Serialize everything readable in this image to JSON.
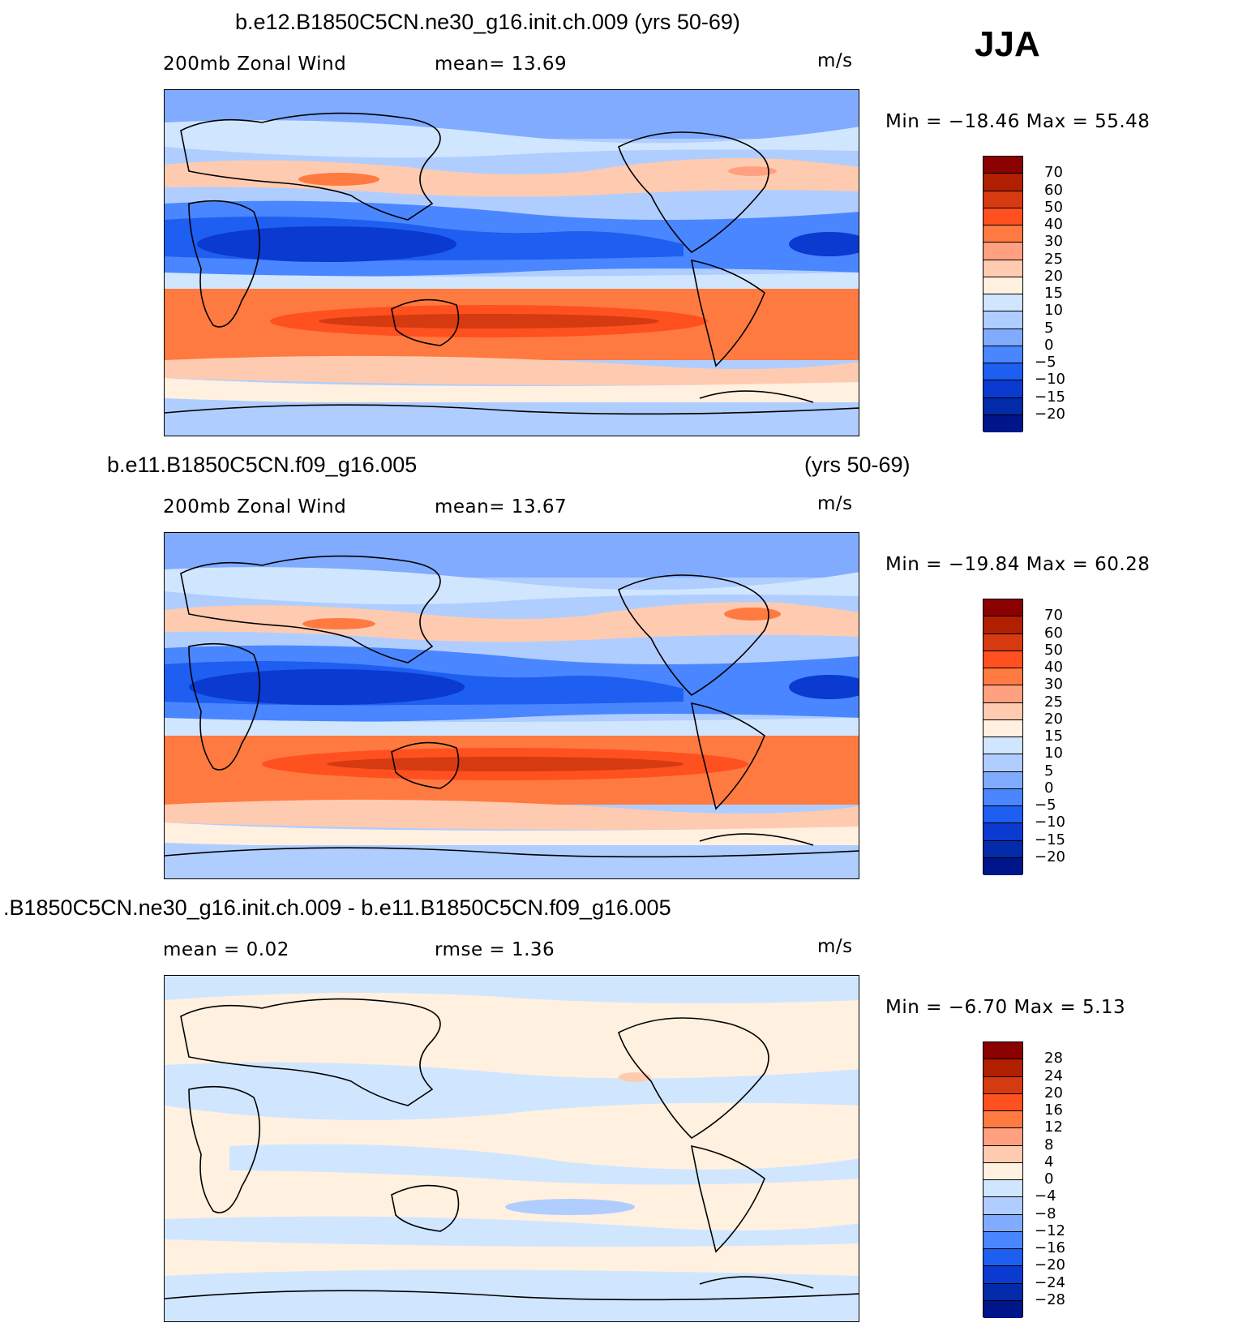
{
  "season": "JJA",
  "panels": [
    {
      "title": "b.e12.B1850C5CN.ne30_g16.init.ch.009 (yrs 50-69)",
      "title_suffix": "",
      "left_label": "200mb  Zonal Wind",
      "center_label": "mean=   13.69",
      "units": "m/s",
      "minmax": "Min  =  −18.46  Max  =    55.48",
      "colorbar_labels": [
        "70",
        "60",
        "50",
        "40",
        "30",
        "25",
        "20",
        "15",
        "10",
        "5",
        "0",
        "−5",
        "−10",
        "−15",
        "−20"
      ],
      "colors": [
        "#8b0000",
        "#b02000",
        "#d63a10",
        "#ff5020",
        "#ff7a40",
        "#ffa080",
        "#ffcbb0",
        "#fff0e0",
        "#d0e6ff",
        "#b0cdff",
        "#80abff",
        "#4a86ff",
        "#1e5ef0",
        "#0a3ad0",
        "#032aa8",
        "#00158a"
      ]
    },
    {
      "title": "b.e11.B1850C5CN.f09_g16.005",
      "title_suffix": "(yrs 50-69)",
      "left_label": "200mb  Zonal Wind",
      "center_label": "mean=   13.67",
      "units": "m/s",
      "minmax": "Min  =  −19.84  Max  =    60.28",
      "colorbar_labels": [
        "70",
        "60",
        "50",
        "40",
        "30",
        "25",
        "20",
        "15",
        "10",
        "5",
        "0",
        "−5",
        "−10",
        "−15",
        "−20"
      ],
      "colors": [
        "#8b0000",
        "#b02000",
        "#d63a10",
        "#ff5020",
        "#ff7a40",
        "#ffa080",
        "#ffcbb0",
        "#fff0e0",
        "#d0e6ff",
        "#b0cdff",
        "#80abff",
        "#4a86ff",
        "#1e5ef0",
        "#0a3ad0",
        "#032aa8",
        "#00158a"
      ]
    },
    {
      "title": ".B1850C5CN.ne30_g16.init.ch.009 - b.e11.B1850C5CN.f09_g16.005",
      "title_suffix": "",
      "left_label": "mean =     0.02",
      "center_label": "rmse  =     1.36",
      "units": "m/s",
      "minmax": "Min  =    −6.70  Max  =      5.13",
      "colorbar_labels": [
        "28",
        "24",
        "20",
        "16",
        "12",
        "8",
        "4",
        "0",
        "−4",
        "−8",
        "−12",
        "−16",
        "−20",
        "−24",
        "−28"
      ],
      "colors": [
        "#8b0000",
        "#b02000",
        "#d63a10",
        "#ff5020",
        "#ff7a40",
        "#ffa080",
        "#ffcbb0",
        "#fff0e0",
        "#d0e6ff",
        "#b0cdff",
        "#80abff",
        "#4a86ff",
        "#1e5ef0",
        "#0a3ad0",
        "#032aa8",
        "#00158a"
      ]
    }
  ]
}
